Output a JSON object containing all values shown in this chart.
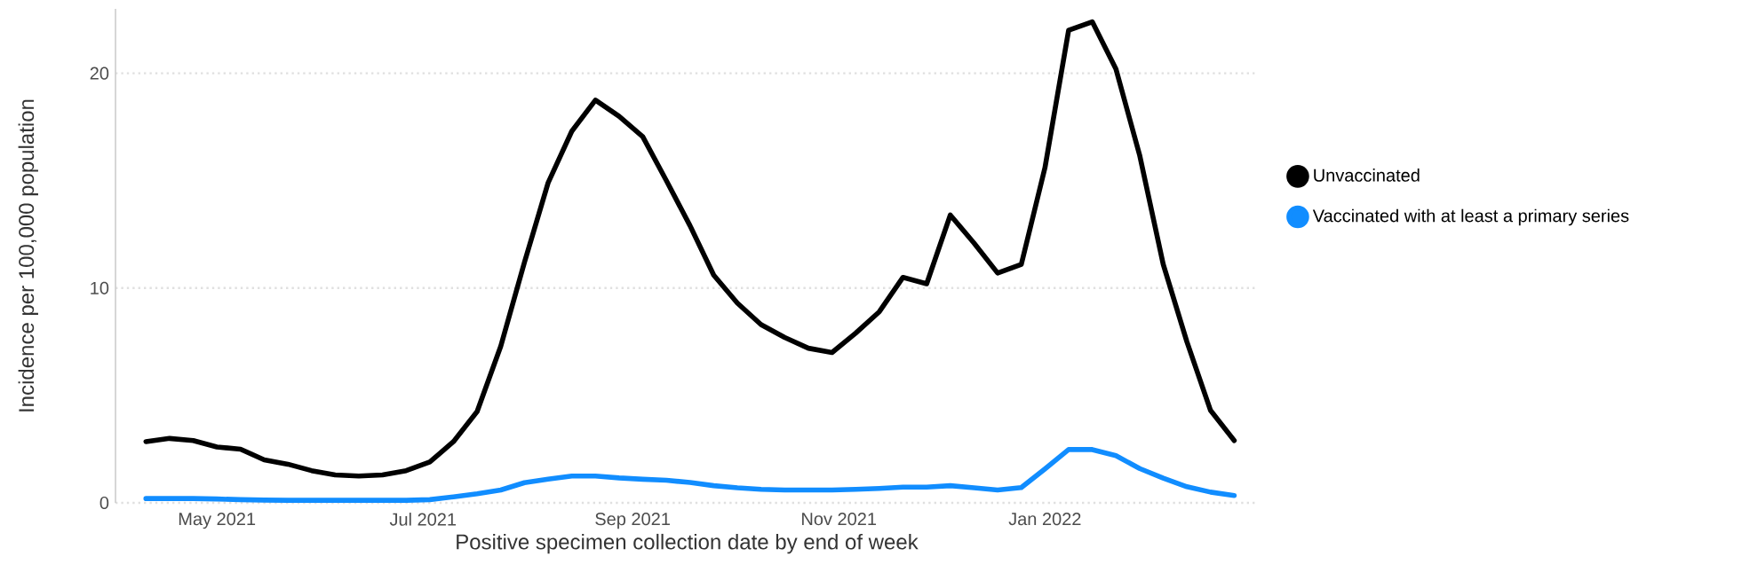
{
  "chart_data": {
    "type": "line",
    "xlabel": "Positive specimen collection date by end of week",
    "ylabel": "Incidence per 100,000 population",
    "x": [
      "2021-04-10",
      "2021-04-17",
      "2021-04-24",
      "2021-05-01",
      "2021-05-08",
      "2021-05-15",
      "2021-05-22",
      "2021-05-29",
      "2021-06-05",
      "2021-06-12",
      "2021-06-19",
      "2021-06-26",
      "2021-07-03",
      "2021-07-10",
      "2021-07-17",
      "2021-07-24",
      "2021-07-31",
      "2021-08-07",
      "2021-08-14",
      "2021-08-21",
      "2021-08-28",
      "2021-09-04",
      "2021-09-11",
      "2021-09-18",
      "2021-09-25",
      "2021-10-02",
      "2021-10-09",
      "2021-10-16",
      "2021-10-23",
      "2021-10-30",
      "2021-11-06",
      "2021-11-13",
      "2021-11-20",
      "2021-11-27",
      "2021-12-04",
      "2021-12-11",
      "2021-12-18",
      "2021-12-25",
      "2022-01-01",
      "2022-01-08",
      "2022-01-15",
      "2022-01-22",
      "2022-01-29",
      "2022-02-05",
      "2022-02-12",
      "2022-02-19",
      "2022-02-26"
    ],
    "series": [
      {
        "name": "Unvaccinated",
        "color": "#000000",
        "values": [
          2.85,
          3.0,
          2.9,
          2.6,
          2.5,
          2.0,
          1.8,
          1.5,
          1.3,
          1.25,
          1.3,
          1.5,
          1.9,
          2.85,
          4.25,
          7.3,
          11.2,
          14.9,
          17.3,
          18.75,
          18.0,
          17.05,
          15.0,
          12.9,
          10.6,
          9.3,
          8.3,
          7.7,
          7.2,
          7.0,
          7.9,
          8.9,
          10.5,
          10.2,
          13.4,
          12.1,
          10.7,
          11.1,
          15.6,
          22.0,
          22.4,
          20.2,
          16.2,
          11.1,
          7.5,
          4.3,
          2.9
        ]
      },
      {
        "name": "Vaccinated with at least a primary series",
        "color": "#118dff",
        "values": [
          0.2,
          0.2,
          0.2,
          0.18,
          0.15,
          0.13,
          0.12,
          0.12,
          0.12,
          0.12,
          0.12,
          0.12,
          0.15,
          0.28,
          0.42,
          0.6,
          0.94,
          1.1,
          1.25,
          1.25,
          1.16,
          1.1,
          1.05,
          0.95,
          0.8,
          0.7,
          0.63,
          0.6,
          0.6,
          0.6,
          0.63,
          0.67,
          0.73,
          0.73,
          0.8,
          0.7,
          0.6,
          0.71,
          1.58,
          2.48,
          2.48,
          2.2,
          1.6,
          1.15,
          0.75,
          0.5,
          0.34
        ]
      }
    ],
    "xlim": [
      "2021-04-01",
      "2022-03-05"
    ],
    "xticks": [
      {
        "value": "2021-05-01",
        "label": "May 2021"
      },
      {
        "value": "2021-07-01",
        "label": "Jul 2021"
      },
      {
        "value": "2021-09-01",
        "label": "Sep 2021"
      },
      {
        "value": "2021-11-01",
        "label": "Nov 2021"
      },
      {
        "value": "2022-01-01",
        "label": "Jan 2022"
      }
    ],
    "ylim": [
      0,
      23
    ],
    "yticks": [
      0,
      10,
      20
    ],
    "grid": "y",
    "legend": "right"
  }
}
